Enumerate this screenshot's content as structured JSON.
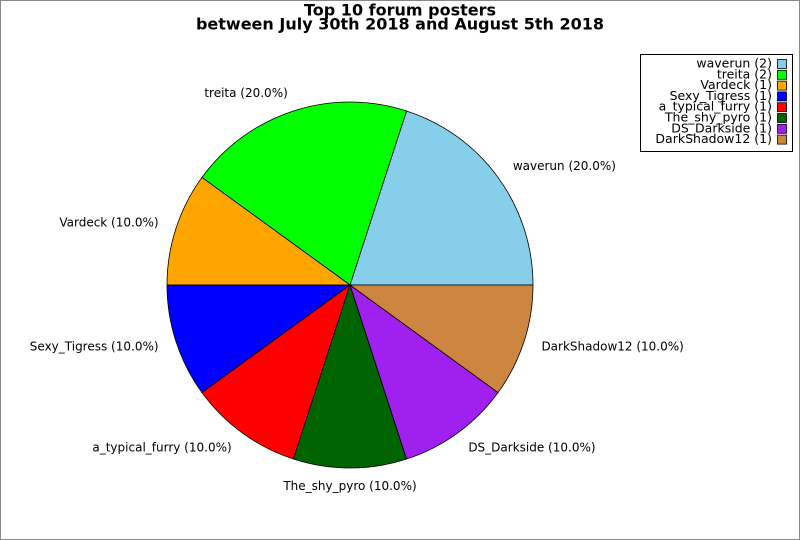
{
  "chart_data": {
    "type": "pie",
    "title": "Top 10 forum posters",
    "subtitle": "between July 30th 2018 and August 5th 2018",
    "values": [
      20,
      20,
      10,
      10,
      10,
      10,
      10,
      10
    ],
    "value_labels": [
      "waverun (20.0%)",
      "treita (20.0%)",
      "Vardeck (10.0%)",
      "Sexy_Tigress (10.0%)",
      "a_typical_furry (10.0%)",
      "The_shy_pyro (10.0%)",
      "DS_Darkside (10.0%)",
      "DarkShadow12 (10.0%)"
    ],
    "legend_labels": [
      "waverun (2)",
      "treita (2)",
      "Vardeck (1)",
      "Sexy_Tigress (1)",
      "a_typical_furry (1)",
      "The_shy_pyro (1)",
      "DS_Darkside (1)",
      "DarkShadow12 (1)"
    ],
    "colors": [
      "#87ceeb",
      "#00ff00",
      "#ffa500",
      "#0000ff",
      "#ff0000",
      "#006400",
      "#a020f0",
      "#cd853f"
    ],
    "legend": "upper right"
  }
}
